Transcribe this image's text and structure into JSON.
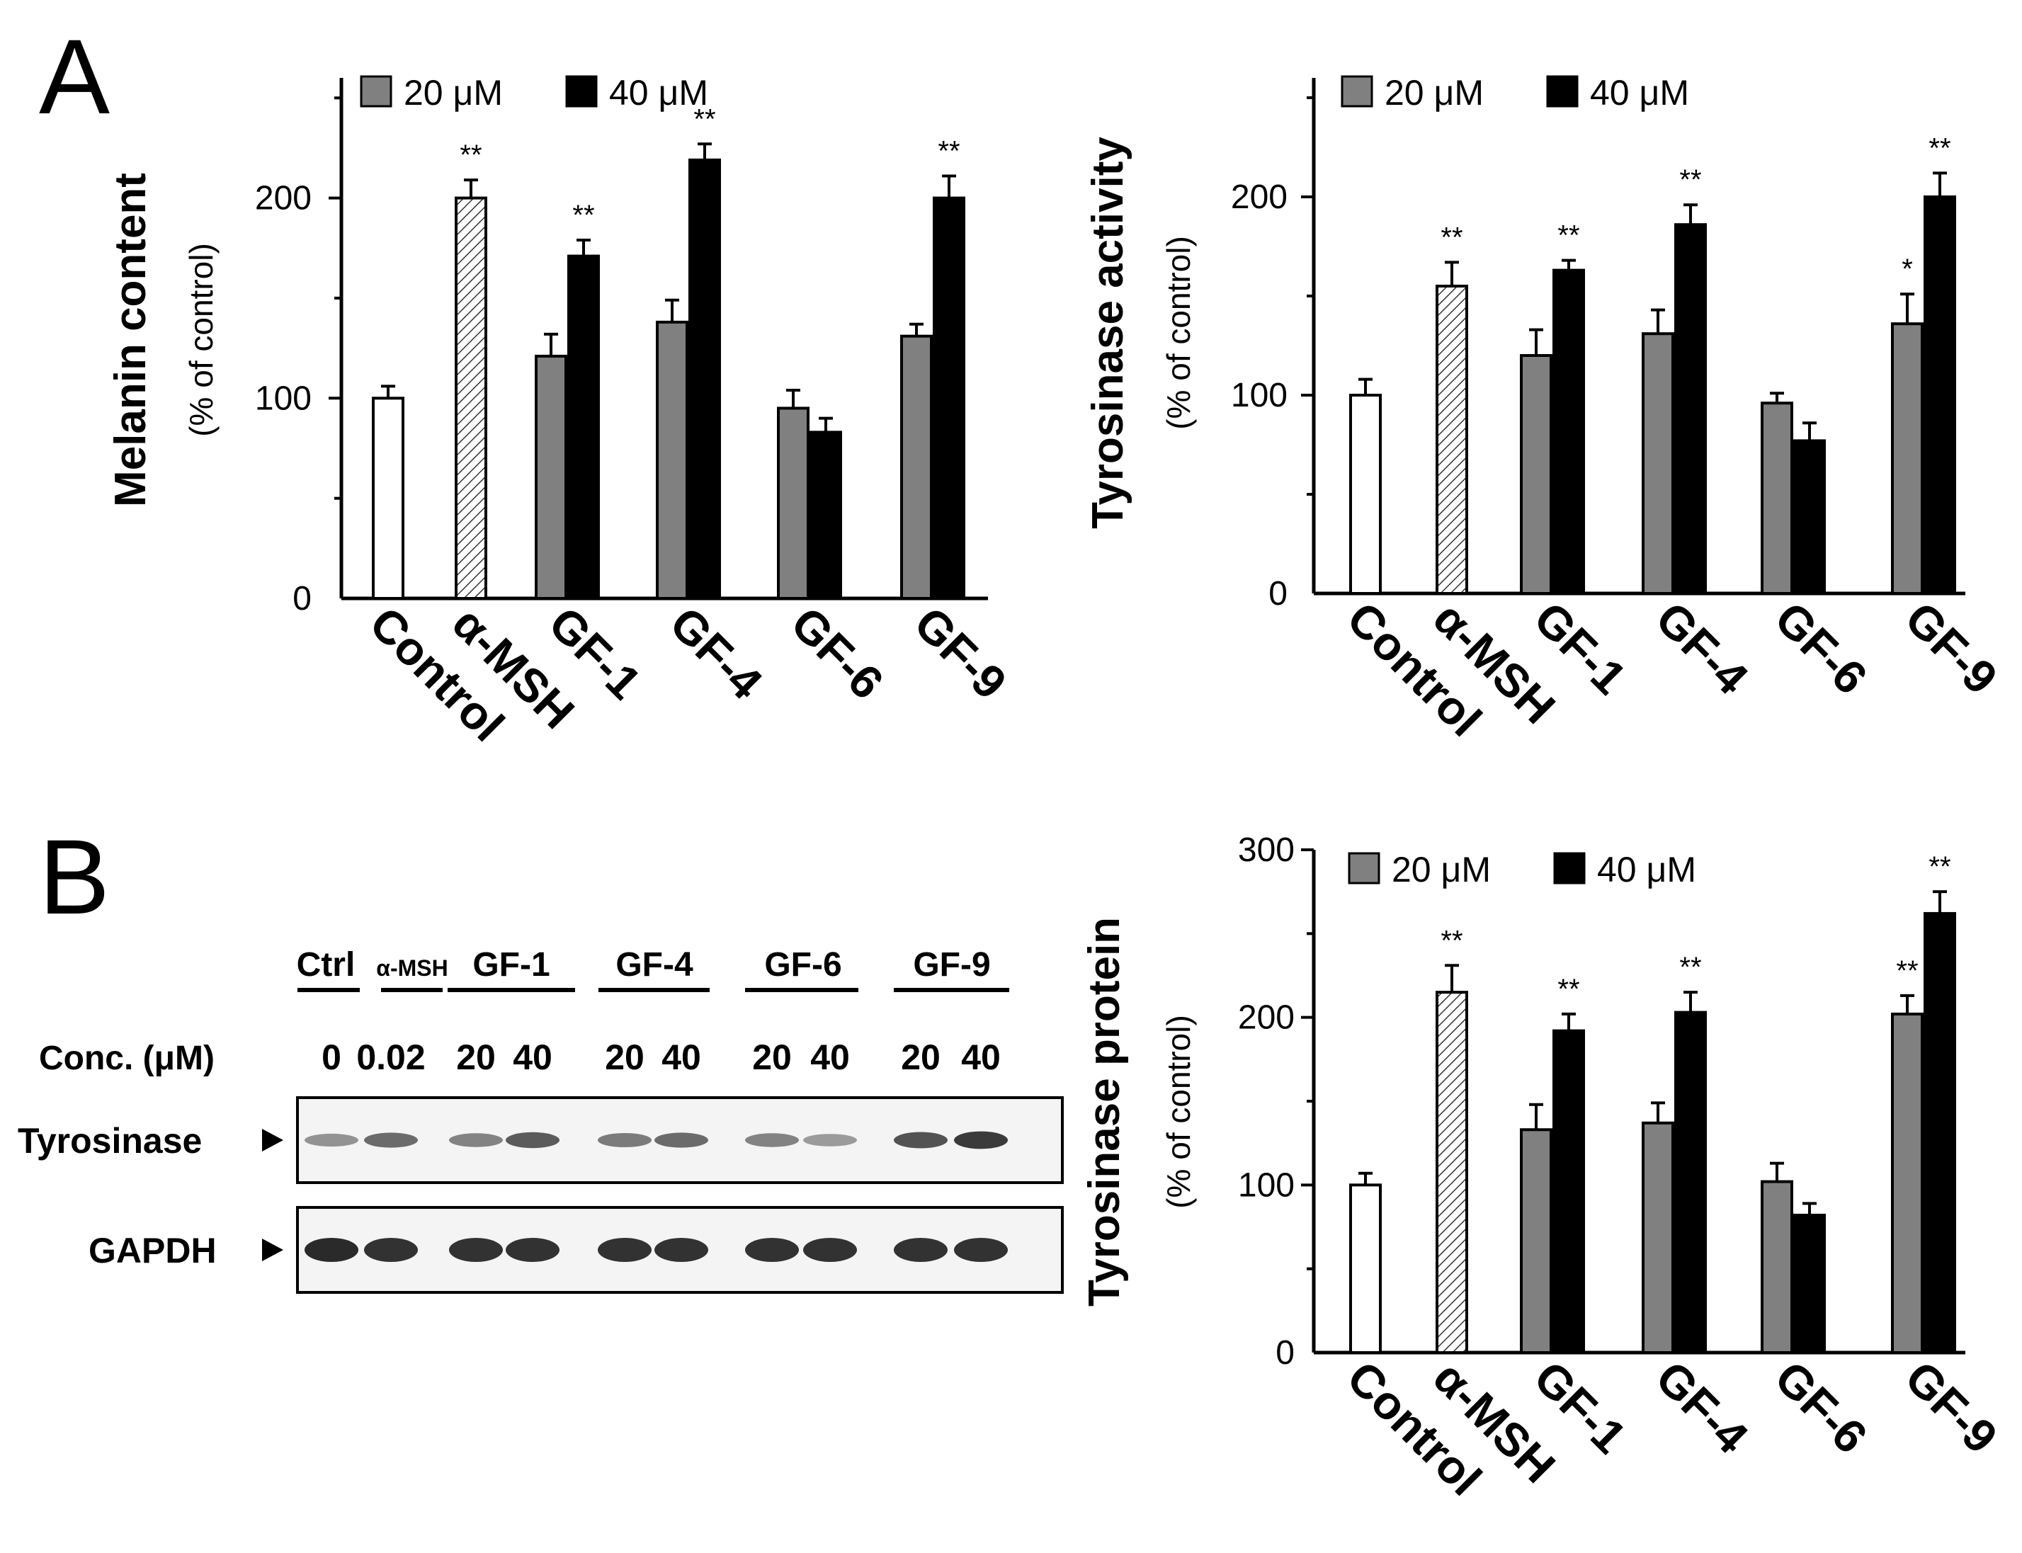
{
  "panels": {
    "a_label": "A",
    "b_label": "B"
  },
  "colors": {
    "bar_20": "#808080",
    "bar_40": "#000000",
    "bar_control": "#ffffff",
    "bar_msh": "#d0d0d0",
    "band": "#2a2a2a"
  },
  "chart_data": [
    {
      "type": "bar",
      "ylabel": "Melanin content",
      "ylabel_sub": "(% of control)",
      "yticks": [
        "0",
        "100",
        "200"
      ],
      "ylim": [
        0,
        260
      ],
      "categories": [
        "Control",
        "α-MSH",
        "GF-1",
        "GF-4",
        "GF-6",
        "GF-9"
      ],
      "legend": [
        "20 μM",
        "40 μM"
      ],
      "bars": [
        {
          "category": "Control",
          "kind": "control",
          "value": 100,
          "err": 6,
          "sig": ""
        },
        {
          "category": "α-MSH",
          "kind": "msh",
          "value": 200,
          "err": 9,
          "sig": "**"
        },
        {
          "category": "GF-1",
          "kind": "c20",
          "value": 121,
          "err": 11,
          "sig": ""
        },
        {
          "category": "GF-1",
          "kind": "c40",
          "value": 171,
          "err": 8,
          "sig": "**"
        },
        {
          "category": "GF-4",
          "kind": "c20",
          "value": 138,
          "err": 11,
          "sig": ""
        },
        {
          "category": "GF-4",
          "kind": "c40",
          "value": 219,
          "err": 8,
          "sig": "**"
        },
        {
          "category": "GF-6",
          "kind": "c20",
          "value": 95,
          "err": 9,
          "sig": ""
        },
        {
          "category": "GF-6",
          "kind": "c40",
          "value": 83,
          "err": 7,
          "sig": ""
        },
        {
          "category": "GF-9",
          "kind": "c20",
          "value": 131,
          "err": 6,
          "sig": ""
        },
        {
          "category": "GF-9",
          "kind": "c40",
          "value": 200,
          "err": 11,
          "sig": "**"
        }
      ]
    },
    {
      "type": "bar",
      "ylabel": "Tyrosinase activity",
      "ylabel_sub": "(% of control)",
      "yticks": [
        "0",
        "100",
        "200"
      ],
      "ylim": [
        0,
        260
      ],
      "categories": [
        "Control",
        "α-MSH",
        "GF-1",
        "GF-4",
        "GF-6",
        "GF-9"
      ],
      "legend": [
        "20 μM",
        "40 μM"
      ],
      "bars": [
        {
          "category": "Control",
          "kind": "control",
          "value": 100,
          "err": 8,
          "sig": ""
        },
        {
          "category": "α-MSH",
          "kind": "msh",
          "value": 155,
          "err": 12,
          "sig": "**"
        },
        {
          "category": "GF-1",
          "kind": "c20",
          "value": 120,
          "err": 13,
          "sig": ""
        },
        {
          "category": "GF-1",
          "kind": "c40",
          "value": 163,
          "err": 5,
          "sig": "**"
        },
        {
          "category": "GF-4",
          "kind": "c20",
          "value": 131,
          "err": 12,
          "sig": ""
        },
        {
          "category": "GF-4",
          "kind": "c40",
          "value": 186,
          "err": 10,
          "sig": "**"
        },
        {
          "category": "GF-6",
          "kind": "c20",
          "value": 96,
          "err": 5,
          "sig": ""
        },
        {
          "category": "GF-6",
          "kind": "c40",
          "value": 77,
          "err": 9,
          "sig": ""
        },
        {
          "category": "GF-9",
          "kind": "c20",
          "value": 136,
          "err": 15,
          "sig": "*"
        },
        {
          "category": "GF-9",
          "kind": "c40",
          "value": 200,
          "err": 12,
          "sig": "**"
        }
      ]
    },
    {
      "type": "bar",
      "ylabel": "Tyrosinase protein",
      "ylabel_sub": "(% of control)",
      "yticks": [
        "0",
        "100",
        "200",
        "300"
      ],
      "ylim": [
        0,
        300
      ],
      "categories": [
        "Control",
        "α-MSH",
        "GF-1",
        "GF-4",
        "GF-6",
        "GF-9"
      ],
      "legend": [
        "20 μM",
        "40 μM"
      ],
      "bars": [
        {
          "category": "Control",
          "kind": "control",
          "value": 100,
          "err": 7,
          "sig": ""
        },
        {
          "category": "α-MSH",
          "kind": "msh",
          "value": 215,
          "err": 16,
          "sig": "**"
        },
        {
          "category": "GF-1",
          "kind": "c20",
          "value": 133,
          "err": 15,
          "sig": ""
        },
        {
          "category": "GF-1",
          "kind": "c40",
          "value": 192,
          "err": 10,
          "sig": "**"
        },
        {
          "category": "GF-4",
          "kind": "c20",
          "value": 137,
          "err": 12,
          "sig": ""
        },
        {
          "category": "GF-4",
          "kind": "c40",
          "value": 203,
          "err": 12,
          "sig": "**"
        },
        {
          "category": "GF-6",
          "kind": "c20",
          "value": 102,
          "err": 11,
          "sig": ""
        },
        {
          "category": "GF-6",
          "kind": "c40",
          "value": 82,
          "err": 7,
          "sig": ""
        },
        {
          "category": "GF-9",
          "kind": "c20",
          "value": 202,
          "err": 11,
          "sig": "**"
        },
        {
          "category": "GF-9",
          "kind": "c40",
          "value": 262,
          "err": 13,
          "sig": "**"
        }
      ]
    }
  ],
  "blot": {
    "groups": [
      "Ctrl",
      "α-MSH",
      "GF-1",
      "GF-4",
      "GF-6",
      "GF-9"
    ],
    "conc_label": "Conc. (μM)",
    "conc_values": [
      "0",
      "0.02",
      "20",
      "40",
      "20",
      "40",
      "20",
      "40",
      "20",
      "40"
    ],
    "rows": [
      {
        "label": "Tyrosinase",
        "intensities": [
          0.35,
          0.6,
          0.45,
          0.7,
          0.5,
          0.6,
          0.45,
          0.3,
          0.75,
          0.9
        ]
      },
      {
        "label": "GAPDH",
        "intensities": [
          1.0,
          0.95,
          0.95,
          0.95,
          0.95,
          0.95,
          0.95,
          0.95,
          0.95,
          0.95
        ]
      }
    ]
  }
}
